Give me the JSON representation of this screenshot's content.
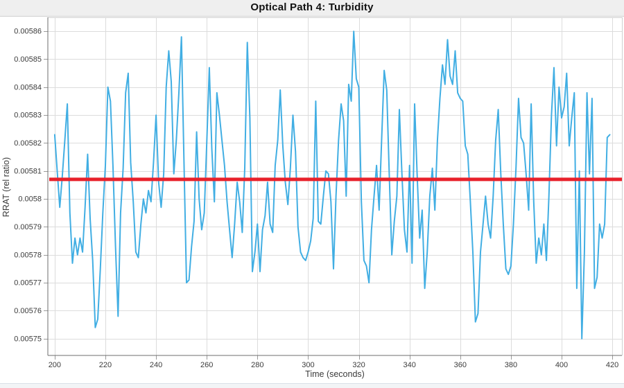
{
  "page": {
    "title_bar": {
      "title": "Optical Path 4: Turbidity"
    }
  },
  "chart_data": {
    "type": "line",
    "title": "Optical Path 4: Turbidity",
    "xlabel": "Time (seconds)",
    "ylabel": "RRAT (rel ratio)",
    "xlim": [
      197.3,
      423.8
    ],
    "ylim": [
      0.005744,
      0.005865
    ],
    "grid": true,
    "legend": "none",
    "x_ticks": [
      200,
      220,
      240,
      260,
      280,
      300,
      320,
      340,
      360,
      380,
      400,
      420
    ],
    "y_ticks": [
      0.00575,
      0.00576,
      0.00577,
      0.00578,
      0.00579,
      0.0058,
      0.00581,
      0.00582,
      0.00583,
      0.00584,
      0.00585,
      0.00586
    ],
    "y_tick_labels": [
      "0.00575",
      "0.00576",
      "0.00577",
      "0.00578",
      "0.00579",
      "0.0058",
      "0.00581",
      "0.00582",
      "0.00583",
      "0.00584",
      "0.00585",
      "0.00586"
    ],
    "reference_line": {
      "value": 0.005807,
      "color": "#E8212B",
      "width": 5
    },
    "series": [
      {
        "name": "RRAT",
        "color": "#41AEE3",
        "width": 2,
        "x_start": 200,
        "x_step": 1,
        "values": [
          0.005823,
          0.00581,
          0.005797,
          0.005808,
          0.005821,
          0.005834,
          0.005795,
          0.005777,
          0.005786,
          0.00578,
          0.005786,
          0.005781,
          0.005797,
          0.005816,
          0.005793,
          0.005778,
          0.005754,
          0.005757,
          0.005775,
          0.005795,
          0.005812,
          0.00584,
          0.005835,
          0.005812,
          0.005783,
          0.005758,
          0.005795,
          0.005811,
          0.005838,
          0.005845,
          0.005813,
          0.005799,
          0.005781,
          0.005779,
          0.005791,
          0.0058,
          0.005795,
          0.005803,
          0.005799,
          0.005813,
          0.00583,
          0.005806,
          0.005797,
          0.005809,
          0.00584,
          0.005853,
          0.005842,
          0.005809,
          0.005821,
          0.005838,
          0.005858,
          0.005814,
          0.00577,
          0.005771,
          0.005783,
          0.005792,
          0.005824,
          0.0058,
          0.005789,
          0.005795,
          0.00582,
          0.005847,
          0.005818,
          0.005799,
          0.005838,
          0.00583,
          0.005821,
          0.005812,
          0.005799,
          0.005789,
          0.005779,
          0.005791,
          0.005806,
          0.005799,
          0.005788,
          0.005811,
          0.005856,
          0.005829,
          0.005774,
          0.005781,
          0.005791,
          0.005774,
          0.005789,
          0.005794,
          0.005806,
          0.005791,
          0.005788,
          0.005812,
          0.005821,
          0.005839,
          0.005819,
          0.005806,
          0.005798,
          0.005811,
          0.00583,
          0.005817,
          0.00579,
          0.005781,
          0.005779,
          0.005778,
          0.005781,
          0.005785,
          0.005793,
          0.005835,
          0.005792,
          0.005791,
          0.005801,
          0.00581,
          0.005809,
          0.005799,
          0.005775,
          0.005801,
          0.005821,
          0.005834,
          0.005828,
          0.005801,
          0.005841,
          0.005835,
          0.00586,
          0.005843,
          0.00584,
          0.005799,
          0.005778,
          0.005776,
          0.00577,
          0.005789,
          0.005801,
          0.005812,
          0.005796,
          0.005821,
          0.005846,
          0.005839,
          0.005809,
          0.00578,
          0.005792,
          0.005801,
          0.005832,
          0.005809,
          0.005789,
          0.005781,
          0.005812,
          0.005777,
          0.005834,
          0.005809,
          0.005786,
          0.005796,
          0.005768,
          0.005781,
          0.005801,
          0.005811,
          0.005796,
          0.005821,
          0.005836,
          0.005848,
          0.005841,
          0.005857,
          0.005844,
          0.005841,
          0.005853,
          0.005838,
          0.005836,
          0.005835,
          0.005819,
          0.005816,
          0.005799,
          0.005781,
          0.005756,
          0.005759,
          0.005781,
          0.005791,
          0.005801,
          0.005791,
          0.005786,
          0.005801,
          0.005821,
          0.005832,
          0.005809,
          0.005791,
          0.005775,
          0.005773,
          0.005776,
          0.005791,
          0.005811,
          0.005836,
          0.005822,
          0.00582,
          0.005809,
          0.005796,
          0.005834,
          0.005799,
          0.005777,
          0.005786,
          0.00578,
          0.005791,
          0.005778,
          0.005801,
          0.00583,
          0.005847,
          0.005819,
          0.00584,
          0.005829,
          0.005833,
          0.005845,
          0.005819,
          0.005829,
          0.005838,
          0.005768,
          0.00581,
          0.00575,
          0.005781,
          0.005838,
          0.005809,
          0.005836,
          0.005768,
          0.005772,
          0.005791,
          0.005786,
          0.005791,
          0.005822,
          0.005823
        ]
      }
    ],
    "style": {
      "plot_background": "#ffffff",
      "grid_color": "#dcdcdc",
      "axis_color": "#6e6e6e",
      "border_color": "#cfcfcf",
      "tick_text_color": "#3b3b3b",
      "title_bar_background": "#efefef"
    }
  }
}
